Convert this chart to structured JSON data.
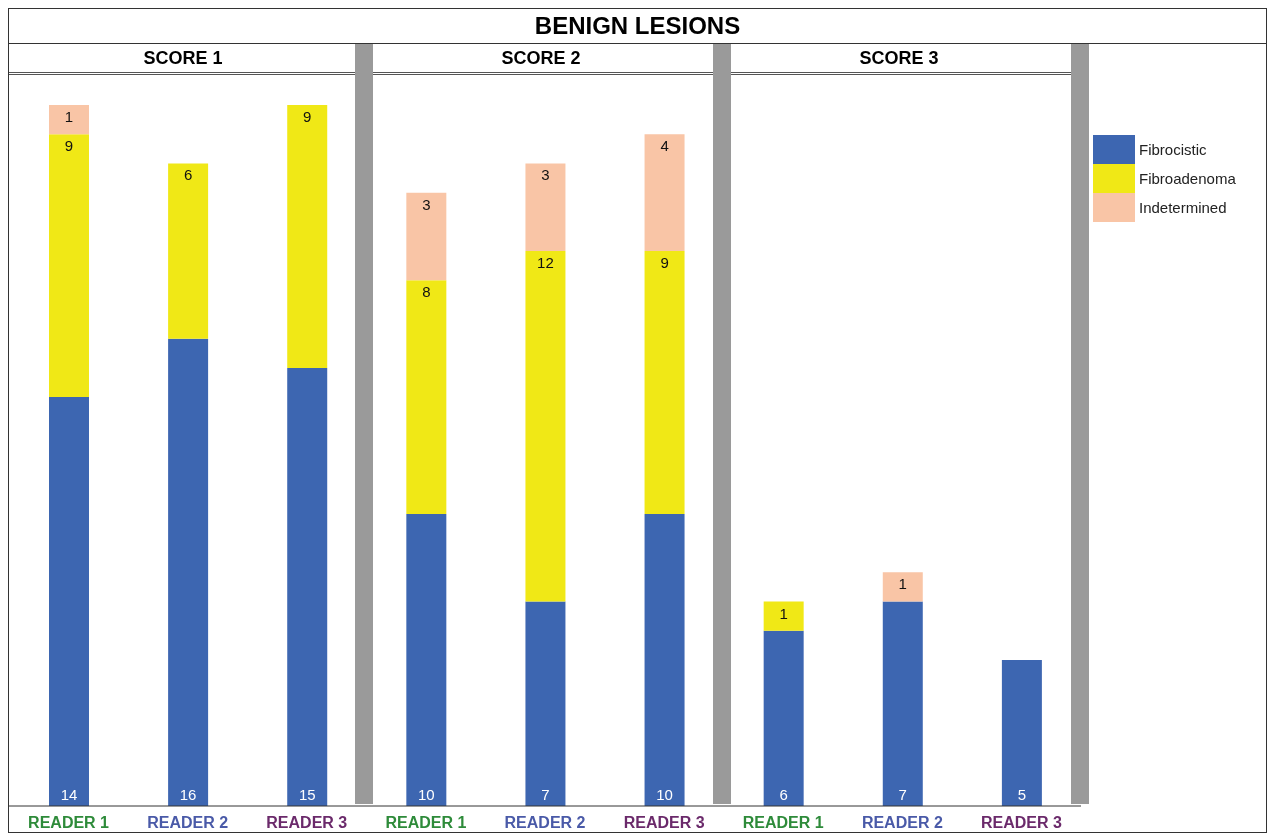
{
  "chart_data": {
    "type": "bar",
    "title": "BENIGN LESIONS",
    "annotations": [
      "SCORE 1",
      "SCORE 2",
      "SCORE 3"
    ],
    "categories": [
      "READER 1",
      "READER 2",
      "READER 3",
      "READER 1",
      "READER 2",
      "READER 3",
      "READER 1",
      "READER 2",
      "READER 3"
    ],
    "series": [
      {
        "name": "Fibrocistic",
        "color": "#3d66b1",
        "values": [
          14,
          16,
          15,
          10,
          7,
          10,
          6,
          7,
          5
        ]
      },
      {
        "name": "Fibroadenoma",
        "color": "#f0e816",
        "values": [
          9,
          6,
          9,
          8,
          12,
          9,
          1,
          null,
          null
        ]
      },
      {
        "name": "Indetermined",
        "color": "#f9c5a6",
        "values": [
          1,
          null,
          null,
          3,
          3,
          4,
          null,
          1,
          null
        ]
      }
    ],
    "stacked": true,
    "data_labels": true,
    "legend": "top right"
  }
}
